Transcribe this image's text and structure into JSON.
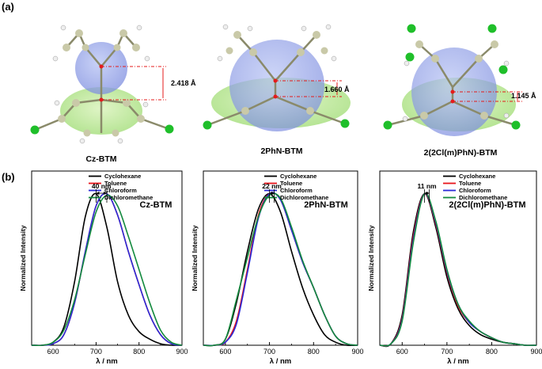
{
  "panel_labels": {
    "a": "(a)",
    "b": "(b)"
  },
  "molecules": [
    {
      "name": "Cz-BTM",
      "distance": "2.418 Å"
    },
    {
      "name": "2PhN-BTM",
      "distance": "1.660 Å"
    },
    {
      "name": "2(2Cl(m)PhN)-BTM",
      "distance": "1.145 Å"
    }
  ],
  "colors": {
    "Cyclohexane": "#000000",
    "Toluene": "#e8141b",
    "Chloroform": "#2a2ad8",
    "Dichloromethane": "#138a3e"
  },
  "chart_data": [
    {
      "type": "line",
      "title": "Cz-BTM",
      "annotation": "40 nm",
      "xlabel": "λ / nm",
      "ylabel": "Normalized Intensity",
      "xlim": [
        550,
        900
      ],
      "ylim": [
        0,
        1.15
      ],
      "xticks": [
        600,
        700,
        800,
        900
      ],
      "x": [
        550,
        575,
        600,
        625,
        650,
        675,
        700,
        725,
        750,
        775,
        800,
        825,
        850,
        875,
        900
      ],
      "series": [
        {
          "name": "Cyclohexane",
          "values": [
            0,
            0,
            0.02,
            0.12,
            0.42,
            0.85,
            1.0,
            0.78,
            0.42,
            0.2,
            0.09,
            0.04,
            0.01,
            0,
            0
          ]
        },
        {
          "name": "Toluene",
          "values": [
            0,
            0,
            0.01,
            0.07,
            0.28,
            0.62,
            0.92,
            1.0,
            0.86,
            0.62,
            0.4,
            0.2,
            0.07,
            0.01,
            0
          ]
        },
        {
          "name": "Chloroform",
          "values": [
            0,
            0,
            0.01,
            0.07,
            0.28,
            0.62,
            0.92,
            1.0,
            0.86,
            0.62,
            0.4,
            0.2,
            0.07,
            0.01,
            0
          ]
        },
        {
          "name": "Dichloromethane",
          "values": [
            0,
            0,
            0.02,
            0.1,
            0.3,
            0.6,
            0.88,
            0.99,
            0.92,
            0.72,
            0.5,
            0.28,
            0.1,
            0.02,
            0
          ]
        }
      ]
    },
    {
      "type": "line",
      "title": "2PhN-BTM",
      "annotation": "22 nm",
      "xlabel": "λ / nm",
      "ylabel": "Normalized Intensity",
      "xlim": [
        550,
        900
      ],
      "ylim": [
        0,
        1.15
      ],
      "xticks": [
        600,
        700,
        800,
        900
      ],
      "x": [
        550,
        575,
        600,
        625,
        650,
        675,
        700,
        725,
        750,
        775,
        800,
        825,
        850,
        875,
        900
      ],
      "series": [
        {
          "name": "Cyclohexane",
          "values": [
            0,
            0,
            0.04,
            0.28,
            0.62,
            0.9,
            1.0,
            0.88,
            0.62,
            0.38,
            0.2,
            0.07,
            0.02,
            0,
            0
          ]
        },
        {
          "name": "Toluene",
          "values": [
            0,
            0,
            0.02,
            0.16,
            0.5,
            0.86,
            1.0,
            0.96,
            0.76,
            0.55,
            0.38,
            0.2,
            0.06,
            0.01,
            0
          ]
        },
        {
          "name": "Chloroform",
          "values": [
            0,
            0,
            0.02,
            0.14,
            0.48,
            0.84,
            1.0,
            0.96,
            0.76,
            0.55,
            0.38,
            0.2,
            0.06,
            0.01,
            0
          ]
        },
        {
          "name": "Dichloromethane",
          "values": [
            0,
            0,
            0.04,
            0.3,
            0.58,
            0.85,
            0.99,
            0.97,
            0.78,
            0.56,
            0.38,
            0.2,
            0.06,
            0.01,
            0
          ]
        }
      ]
    },
    {
      "type": "line",
      "title": "2(2Cl(m)PhN)-BTM",
      "annotation": "11 nm",
      "xlabel": "λ / nm",
      "ylabel": "Normalized Intensity",
      "xlim": [
        550,
        900
      ],
      "ylim": [
        0,
        1.15
      ],
      "xticks": [
        600,
        700,
        800,
        900
      ],
      "x": [
        550,
        575,
        600,
        625,
        650,
        675,
        700,
        725,
        750,
        775,
        800,
        825,
        850,
        875,
        900
      ],
      "series": [
        {
          "name": "Cyclohexane",
          "values": [
            0,
            0.01,
            0.2,
            0.75,
            1.0,
            0.78,
            0.45,
            0.24,
            0.13,
            0.07,
            0.04,
            0.02,
            0.01,
            0,
            0
          ]
        },
        {
          "name": "Toluene",
          "values": [
            0,
            0.01,
            0.18,
            0.72,
            1.0,
            0.8,
            0.48,
            0.26,
            0.15,
            0.09,
            0.05,
            0.02,
            0.01,
            0,
            0
          ]
        },
        {
          "name": "Chloroform",
          "values": [
            0,
            0.01,
            0.17,
            0.7,
            1.0,
            0.81,
            0.49,
            0.27,
            0.15,
            0.09,
            0.05,
            0.02,
            0.01,
            0,
            0
          ]
        },
        {
          "name": "Dichloromethane",
          "values": [
            0,
            0.01,
            0.16,
            0.68,
            1.0,
            0.82,
            0.5,
            0.27,
            0.16,
            0.09,
            0.05,
            0.02,
            0.01,
            0,
            0
          ]
        }
      ]
    }
  ]
}
